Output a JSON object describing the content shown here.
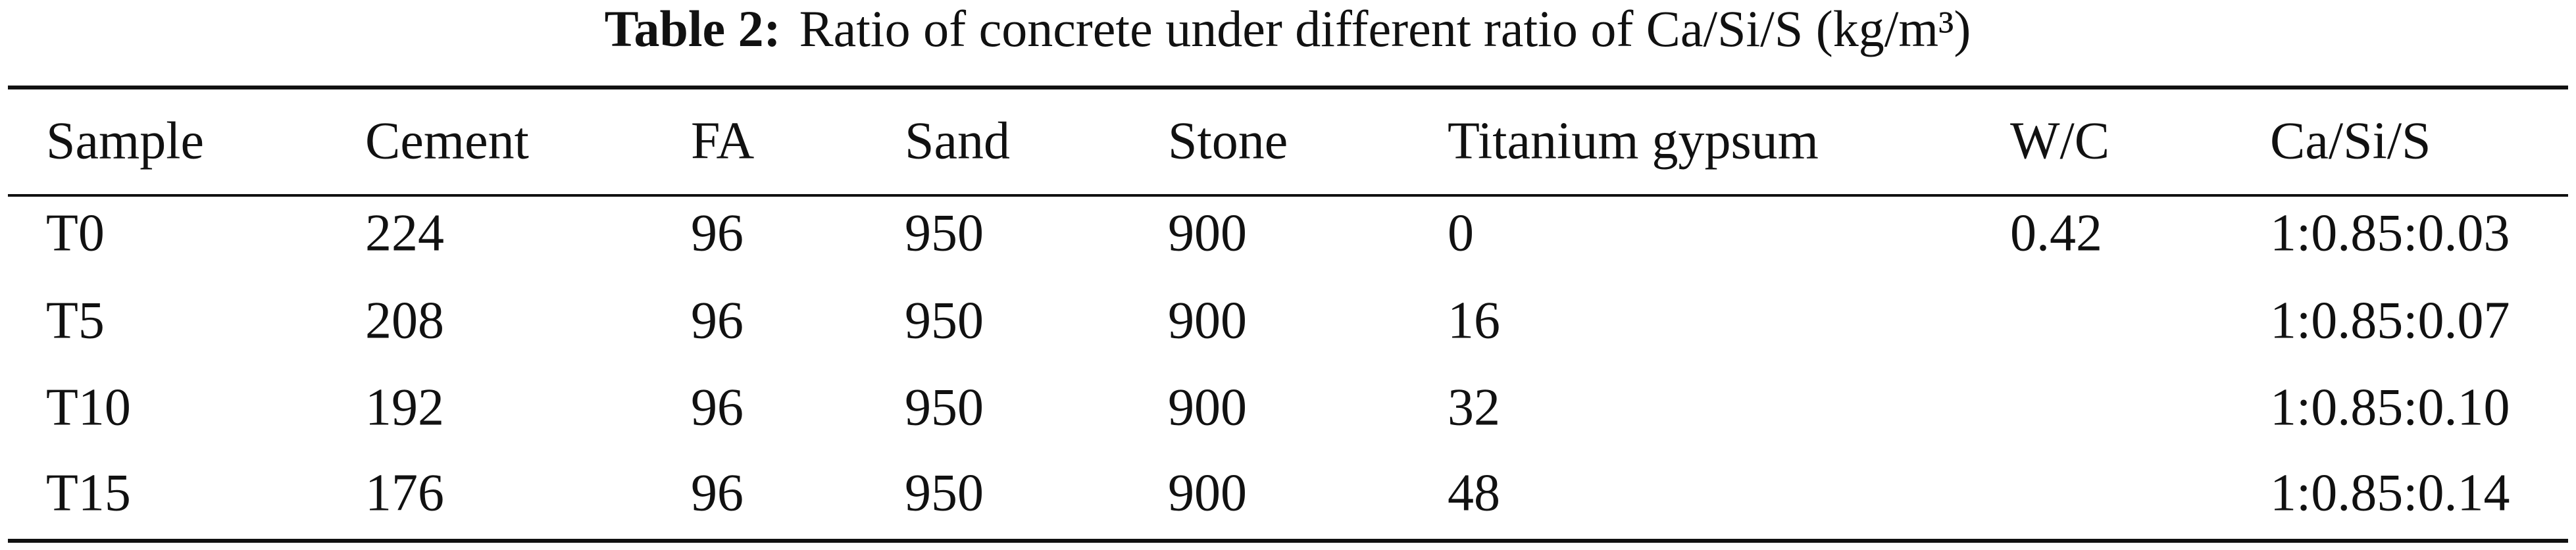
{
  "title": {
    "label": "Table 2:",
    "text": "Ratio of concrete under different ratio of Ca/Si/S (kg/m³)"
  },
  "table": {
    "columns": [
      "Sample",
      "Cement",
      "FA",
      "Sand",
      "Stone",
      "Titanium gypsum",
      "W/C",
      "Ca/Si/S"
    ],
    "rows": [
      [
        "T0",
        "224",
        "96",
        "950",
        "900",
        "0",
        "0.42",
        "1:0.85:0.03"
      ],
      [
        "T5",
        "208",
        "96",
        "950",
        "900",
        "16",
        null,
        "1:0.85:0.07"
      ],
      [
        "T10",
        "192",
        "96",
        "950",
        "900",
        "32",
        null,
        "1:0.85:0.10"
      ],
      [
        "T15",
        "176",
        "96",
        "950",
        "900",
        "48",
        null,
        "1:0.85:0.14"
      ]
    ]
  }
}
